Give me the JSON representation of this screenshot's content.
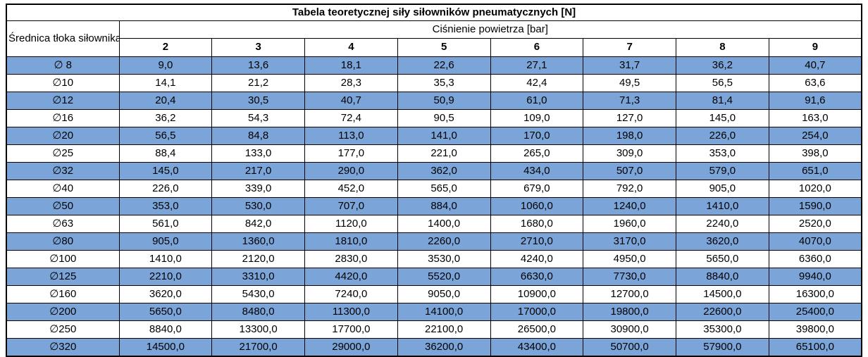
{
  "chart_data": {
    "type": "table",
    "title": "Tabela teoretycznej siły siłowników pneumatycznych [N]",
    "row_header": "Średnica tłoka siłownika",
    "column_group_header": "Ciśnienie powietrza [bar]",
    "columns": [
      "2",
      "3",
      "4",
      "5",
      "6",
      "7",
      "8",
      "9"
    ],
    "rows": [
      {
        "label": "∅ 8",
        "values": [
          "9,0",
          "13,6",
          "18,1",
          "22,6",
          "27,1",
          "31,7",
          "36,2",
          "40,7"
        ]
      },
      {
        "label": "∅10",
        "values": [
          "14,1",
          "21,2",
          "28,3",
          "35,3",
          "42,4",
          "49,5",
          "56,5",
          "63,6"
        ]
      },
      {
        "label": "∅12",
        "values": [
          "20,4",
          "30,5",
          "40,7",
          "50,9",
          "61,0",
          "71,3",
          "81,4",
          "91,6"
        ]
      },
      {
        "label": "∅16",
        "values": [
          "36,2",
          "54,3",
          "72,4",
          "90,5",
          "109,0",
          "127,0",
          "145,0",
          "163,0"
        ]
      },
      {
        "label": "∅20",
        "values": [
          "56,5",
          "84,8",
          "113,0",
          "141,0",
          "170,0",
          "198,0",
          "226,0",
          "254,0"
        ]
      },
      {
        "label": "∅25",
        "values": [
          "88,4",
          "133,0",
          "177,0",
          "221,0",
          "265,0",
          "309,0",
          "353,0",
          "398,0"
        ]
      },
      {
        "label": "∅32",
        "values": [
          "145,0",
          "217,0",
          "290,0",
          "362,0",
          "434,0",
          "507,0",
          "579,0",
          "651,0"
        ]
      },
      {
        "label": "∅40",
        "values": [
          "226,0",
          "339,0",
          "452,0",
          "565,0",
          "679,0",
          "792,0",
          "905,0",
          "1020,0"
        ]
      },
      {
        "label": "∅50",
        "values": [
          "353,0",
          "530,0",
          "707,0",
          "884,0",
          "1060,0",
          "1240,0",
          "1410,0",
          "1590,0"
        ]
      },
      {
        "label": "∅63",
        "values": [
          "561,0",
          "842,0",
          "1120,0",
          "1400,0",
          "1680,0",
          "1960,0",
          "2240,0",
          "2520,0"
        ]
      },
      {
        "label": "∅80",
        "values": [
          "905,0",
          "1360,0",
          "1810,0",
          "2260,0",
          "2710,0",
          "3170,0",
          "3620,0",
          "4070,0"
        ]
      },
      {
        "label": "∅100",
        "values": [
          "1410,0",
          "2120,0",
          "2830,0",
          "3530,0",
          "4240,0",
          "4950,0",
          "5650,0",
          "6360,0"
        ]
      },
      {
        "label": "∅125",
        "values": [
          "2210,0",
          "3310,0",
          "4420,0",
          "5520,0",
          "6630,0",
          "7730,0",
          "8840,0",
          "9940,0"
        ]
      },
      {
        "label": "∅160",
        "values": [
          "3620,0",
          "5430,0",
          "7240,0",
          "9050,0",
          "10900,0",
          "12700,0",
          "14500,0",
          "16300,0"
        ]
      },
      {
        "label": "∅200",
        "values": [
          "5650,0",
          "8480,0",
          "11300,0",
          "14100,0",
          "17000,0",
          "19800,0",
          "22600,0",
          "25400,0"
        ]
      },
      {
        "label": "∅250",
        "values": [
          "8840,0",
          "13300,0",
          "17700,0",
          "22100,0",
          "26500,0",
          "30900,0",
          "35300,0",
          "39800,0"
        ]
      },
      {
        "label": "∅320",
        "values": [
          "14500,0",
          "21700,0",
          "29000,0",
          "36200,0",
          "43400,0",
          "50700,0",
          "57900,0",
          "65100,0"
        ]
      }
    ],
    "layout": {
      "row_striping": "alternating, first data row highlighted",
      "grid": true,
      "value_alignment": "center"
    }
  },
  "colors": {
    "row_highlight": "#7BA4D8",
    "row_plain": "#FFFFFF",
    "border": "#000000",
    "text": "#000000"
  }
}
